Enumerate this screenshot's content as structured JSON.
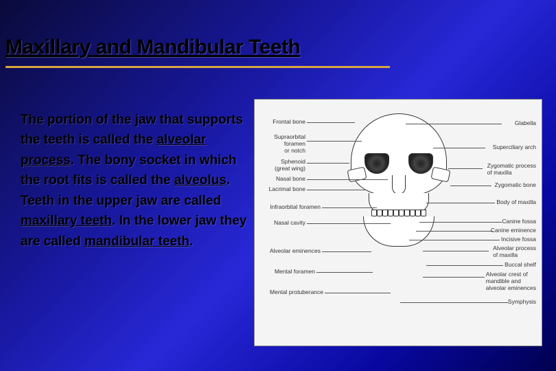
{
  "slide": {
    "title": "Maxillary and Mandibular Teeth",
    "body": {
      "p1_a": "The portion of the jaw that supports the teeth is called the ",
      "p1_u1": "alveolar process",
      "p1_b": ". The bony socket in which the root fits is called the ",
      "p1_u2": "alveolus",
      "p1_c": ".",
      "p2_a": "Teeth in the upper jaw are called ",
      "p2_u1": "maxillary teeth",
      "p2_b": ". In the lower jaw they are called ",
      "p2_u2": "mandibular teeth",
      "p2_c": "."
    }
  },
  "figure": {
    "labels_left": [
      "Frontal bone",
      "Supraorbital\nforamen\nor notch",
      "Sphenoid\n(great wing)",
      "Nasal bone",
      "Lacrimal bone",
      "Infraorbital foramen",
      "Nasal cavity",
      "Alveolar eminences",
      "Mental foramen",
      "Mental protuberance"
    ],
    "labels_right": [
      "Glabella",
      "Superciliary arch",
      "Zygomatic process\nof maxilla",
      "Zygomatic bone",
      "Body of maxilla",
      "Canine fossa",
      "Canine eminence",
      "Incisive fossa",
      "Alveolar process\nof maxilla",
      "Buccal shelf",
      "Alveolar crest of\nmandible and\nalveolar eminences",
      "Symphysis"
    ]
  },
  "colors": {
    "accent": "#d9a640",
    "bg_dark": "#0a0a3a",
    "bg_mid": "#2828d8"
  }
}
